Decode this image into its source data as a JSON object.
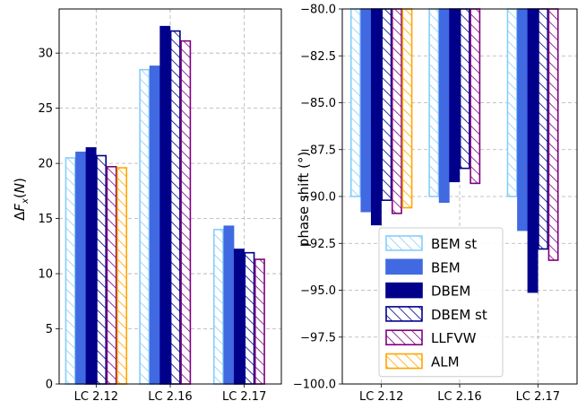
{
  "chart_data": [
    {
      "type": "bar",
      "categories": [
        "LC 2.12",
        "LC 2.16",
        "LC 2.17"
      ],
      "ylabel": "ΔF_x(N)",
      "ylim": [
        0,
        34
      ],
      "yticks": [
        0,
        5,
        10,
        15,
        20,
        25,
        30
      ],
      "ytick_labels": [
        "0",
        "5",
        "10",
        "15",
        "20",
        "25",
        "30"
      ],
      "grid": true,
      "series": [
        {
          "name": "BEM st",
          "values": [
            20.5,
            28.5,
            14.0
          ]
        },
        {
          "name": "BEM",
          "values": [
            21.0,
            28.8,
            14.3
          ]
        },
        {
          "name": "DBEM",
          "values": [
            21.4,
            32.4,
            12.2
          ]
        },
        {
          "name": "DBEM st",
          "values": [
            20.7,
            32.0,
            11.9
          ]
        },
        {
          "name": "LLFVW",
          "values": [
            19.7,
            31.1,
            11.3
          ]
        },
        {
          "name": "ALM",
          "values": [
            19.6,
            null,
            null
          ]
        }
      ]
    },
    {
      "type": "bar",
      "categories": [
        "LC 2.12",
        "LC 2.16",
        "LC 2.17"
      ],
      "ylabel": "phase shift (°)",
      "ylim": [
        -100,
        -80
      ],
      "yticks": [
        -100,
        -97.5,
        -95,
        -92.5,
        -90,
        -87.5,
        -85,
        -82.5,
        -80
      ],
      "ytick_labels": [
        "−100.0",
        "−97.5",
        "−95.0",
        "−92.5",
        "−90.0",
        "−87.5",
        "−85.0",
        "−82.5",
        "−80.0"
      ],
      "grid": true,
      "legend": "bottom-right",
      "series": [
        {
          "name": "BEM st",
          "values": [
            -90.0,
            -90.0,
            -90.0
          ]
        },
        {
          "name": "BEM",
          "values": [
            -90.8,
            -90.3,
            -91.8
          ]
        },
        {
          "name": "DBEM",
          "values": [
            -91.5,
            -89.2,
            -95.1
          ]
        },
        {
          "name": "DBEM st",
          "values": [
            -90.2,
            -88.5,
            -92.8
          ]
        },
        {
          "name": "LLFVW",
          "values": [
            -90.9,
            -89.3,
            -93.4
          ]
        },
        {
          "name": "ALM",
          "values": [
            -90.6,
            null,
            null
          ]
        }
      ]
    }
  ],
  "styles": [
    {
      "name": "BEM st",
      "fill": "#ffffff",
      "edge": "#87cefa",
      "hatch": "#87cefa"
    },
    {
      "name": "BEM",
      "fill": "#4169e1",
      "edge": "#4169e1",
      "hatch": null
    },
    {
      "name": "DBEM",
      "fill": "#00008b",
      "edge": "#00008b",
      "hatch": null
    },
    {
      "name": "DBEM st",
      "fill": "#ffffff",
      "edge": "#00008b",
      "hatch": "#00008b"
    },
    {
      "name": "LLFVW",
      "fill": "#ffffff",
      "edge": "#800080",
      "hatch": "#800080"
    },
    {
      "name": "ALM",
      "fill": "#ffffff",
      "edge": "#ffa500",
      "hatch": "#ffa500"
    }
  ]
}
